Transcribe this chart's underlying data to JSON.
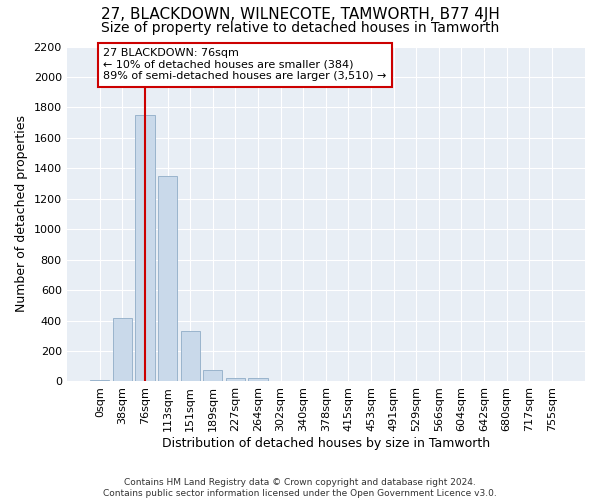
{
  "title": "27, BLACKDOWN, WILNECOTE, TAMWORTH, B77 4JH",
  "subtitle": "Size of property relative to detached houses in Tamworth",
  "xlabel": "Distribution of detached houses by size in Tamworth",
  "ylabel": "Number of detached properties",
  "bar_color": "#c9d9ea",
  "bar_edge_color": "#9ab4cc",
  "marker_line_color": "#cc0000",
  "annotation_text": "27 BLACKDOWN: 76sqm\n← 10% of detached houses are smaller (384)\n89% of semi-detached houses are larger (3,510) →",
  "categories": [
    "0sqm",
    "38sqm",
    "76sqm",
    "113sqm",
    "151sqm",
    "189sqm",
    "227sqm",
    "264sqm",
    "302sqm",
    "340sqm",
    "378sqm",
    "415sqm",
    "453sqm",
    "491sqm",
    "529sqm",
    "566sqm",
    "604sqm",
    "642sqm",
    "680sqm",
    "717sqm",
    "755sqm"
  ],
  "bar_heights": [
    10,
    415,
    1750,
    1350,
    330,
    75,
    25,
    25,
    0,
    0,
    0,
    0,
    0,
    0,
    0,
    0,
    0,
    0,
    0,
    0,
    0
  ],
  "ylim": [
    0,
    2200
  ],
  "yticks": [
    0,
    200,
    400,
    600,
    800,
    1000,
    1200,
    1400,
    1600,
    1800,
    2000,
    2200
  ],
  "background_color": "#ffffff",
  "plot_background": "#e8eef5",
  "footer_text": "Contains HM Land Registry data © Crown copyright and database right 2024.\nContains public sector information licensed under the Open Government Licence v3.0.",
  "title_fontsize": 11,
  "subtitle_fontsize": 10,
  "ylabel_fontsize": 9,
  "xlabel_fontsize": 9,
  "tick_fontsize": 8,
  "annotation_box_color": "#ffffff",
  "annotation_box_edge": "#cc0000",
  "annotation_fontsize": 8,
  "grid_color": "#ffffff",
  "marker_idx": 2
}
